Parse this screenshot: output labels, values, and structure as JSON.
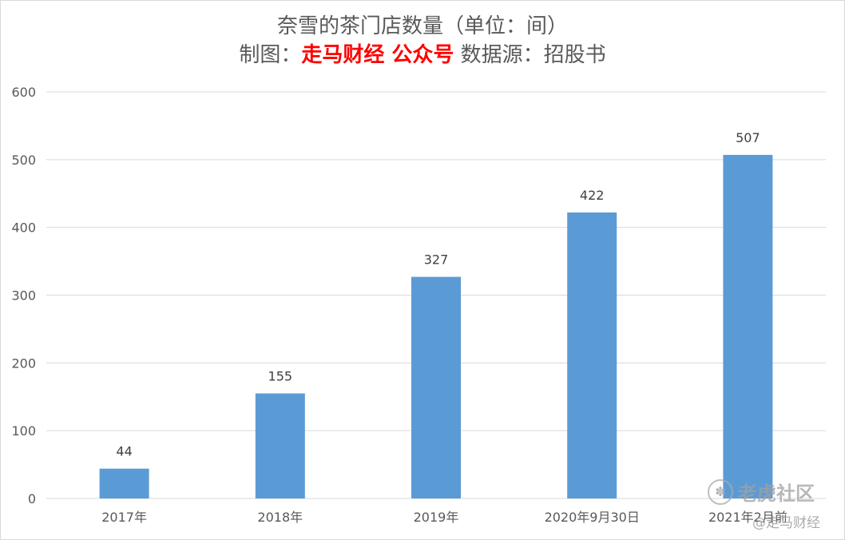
{
  "title": {
    "line1": "奈雪的茶门店数量（单位：间）",
    "line2_prefix": "制图：",
    "line2_brand": "走马财经 公众号",
    "line2_suffix": " 数据源：招股书"
  },
  "watermark": {
    "logo_icon": "paw-icon",
    "site": "老虎社区",
    "author": "@走马财经"
  },
  "colors": {
    "bar": "#5b9bd5",
    "grid": "#d9d9d9",
    "axis_text": "#595959",
    "brand": "#ff0000"
  },
  "chart_data": {
    "type": "bar",
    "categories": [
      "2017年",
      "2018年",
      "2019年",
      "2020年9月30日",
      "2021年2月前"
    ],
    "values": [
      44,
      155,
      327,
      422,
      507
    ],
    "data_labels": [
      "44",
      "155",
      "327",
      "422",
      "507"
    ],
    "title": "奈雪的茶门店数量（单位：间）",
    "ylim": [
      0,
      600
    ],
    "yticks": [
      0,
      100,
      200,
      300,
      400,
      500,
      600
    ],
    "grid": true,
    "legend": "none"
  }
}
